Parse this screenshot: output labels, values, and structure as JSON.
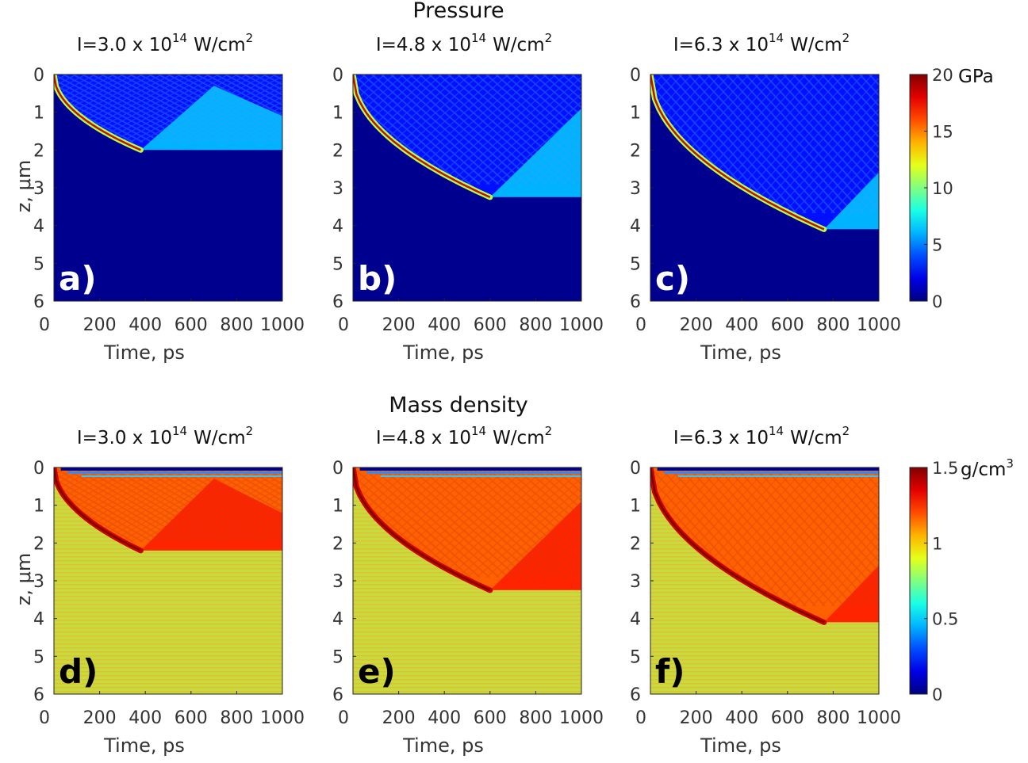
{
  "chart_data": {
    "type": "heatmap",
    "sections": [
      {
        "title": "Pressure",
        "colorbar": {
          "unit": "GPa",
          "unit_sup": "",
          "ticks": [
            "20",
            "15",
            "10",
            "5",
            "0"
          ],
          "range": [
            0,
            20
          ]
        },
        "field": "pressure"
      },
      {
        "title": "Mass density",
        "colorbar": {
          "unit": "g/cm",
          "unit_sup": "3",
          "ticks": [
            "1.5",
            "1",
            "0.5",
            "0"
          ],
          "range": [
            0,
            1.5
          ]
        },
        "field": "density"
      }
    ],
    "panels": [
      {
        "label": "a)",
        "title_main": "I=3.0 x 10",
        "title_exp": "14",
        "title_unit": "W/cm",
        "title_unit_sup": "2",
        "intensity": 3.0,
        "front_end_time_ps": 380,
        "front_end_depth_um": 2.0,
        "reflected_peak_time_ps": 700,
        "reflected_peak_depth_um": 0.3,
        "peak_pressure_gpa": 20,
        "section": 0
      },
      {
        "label": "b)",
        "title_main": "I=4.8 x 10",
        "title_exp": "14",
        "title_unit": "W/cm",
        "title_unit_sup": "2",
        "intensity": 4.8,
        "front_end_time_ps": 600,
        "front_end_depth_um": 3.25,
        "reflected_peak_time_ps": 1000,
        "reflected_peak_depth_um": 0.9,
        "peak_pressure_gpa": 20,
        "section": 0
      },
      {
        "label": "c)",
        "title_main": "I=6.3 x 10",
        "title_exp": "14",
        "title_unit": "W/cm",
        "title_unit_sup": "2",
        "intensity": 6.3,
        "front_end_time_ps": 760,
        "front_end_depth_um": 4.1,
        "reflected_peak_time_ps": 1000,
        "reflected_peak_depth_um": 2.6,
        "peak_pressure_gpa": 20,
        "section": 0
      },
      {
        "label": "d)",
        "title_main": "I=3.0 x 10",
        "title_exp": "14",
        "title_unit": "W/cm",
        "title_unit_sup": "2",
        "intensity": 3.0,
        "front_end_time_ps": 380,
        "front_end_depth_um": 2.2,
        "reflected_peak_time_ps": 700,
        "reflected_peak_depth_um": 0.3,
        "peak_density_gcm3": 1.5,
        "section": 1
      },
      {
        "label": "e)",
        "title_main": "I=4.8 x 10",
        "title_exp": "14",
        "title_unit": "W/cm",
        "title_unit_sup": "2",
        "intensity": 4.8,
        "front_end_time_ps": 600,
        "front_end_depth_um": 3.25,
        "reflected_peak_time_ps": 1000,
        "reflected_peak_depth_um": 0.9,
        "peak_density_gcm3": 1.5,
        "section": 1
      },
      {
        "label": "f)",
        "title_main": "I=6.3 x 10",
        "title_exp": "14",
        "title_unit": "W/cm",
        "title_unit_sup": "2",
        "intensity": 6.3,
        "front_end_time_ps": 760,
        "front_end_depth_um": 4.1,
        "reflected_peak_time_ps": 1000,
        "reflected_peak_depth_um": 2.6,
        "peak_density_gcm3": 1.5,
        "section": 1
      }
    ],
    "xlabel": "Time, ps",
    "ylabel": "z, μm",
    "xlim": [
      0,
      1000
    ],
    "ylim": [
      0,
      6
    ],
    "xticks": [
      "0",
      "200",
      "400",
      "600",
      "800",
      "1000"
    ],
    "yticks": [
      "0",
      "1",
      "2",
      "3",
      "4",
      "5",
      "6"
    ],
    "colormap": "jet"
  }
}
